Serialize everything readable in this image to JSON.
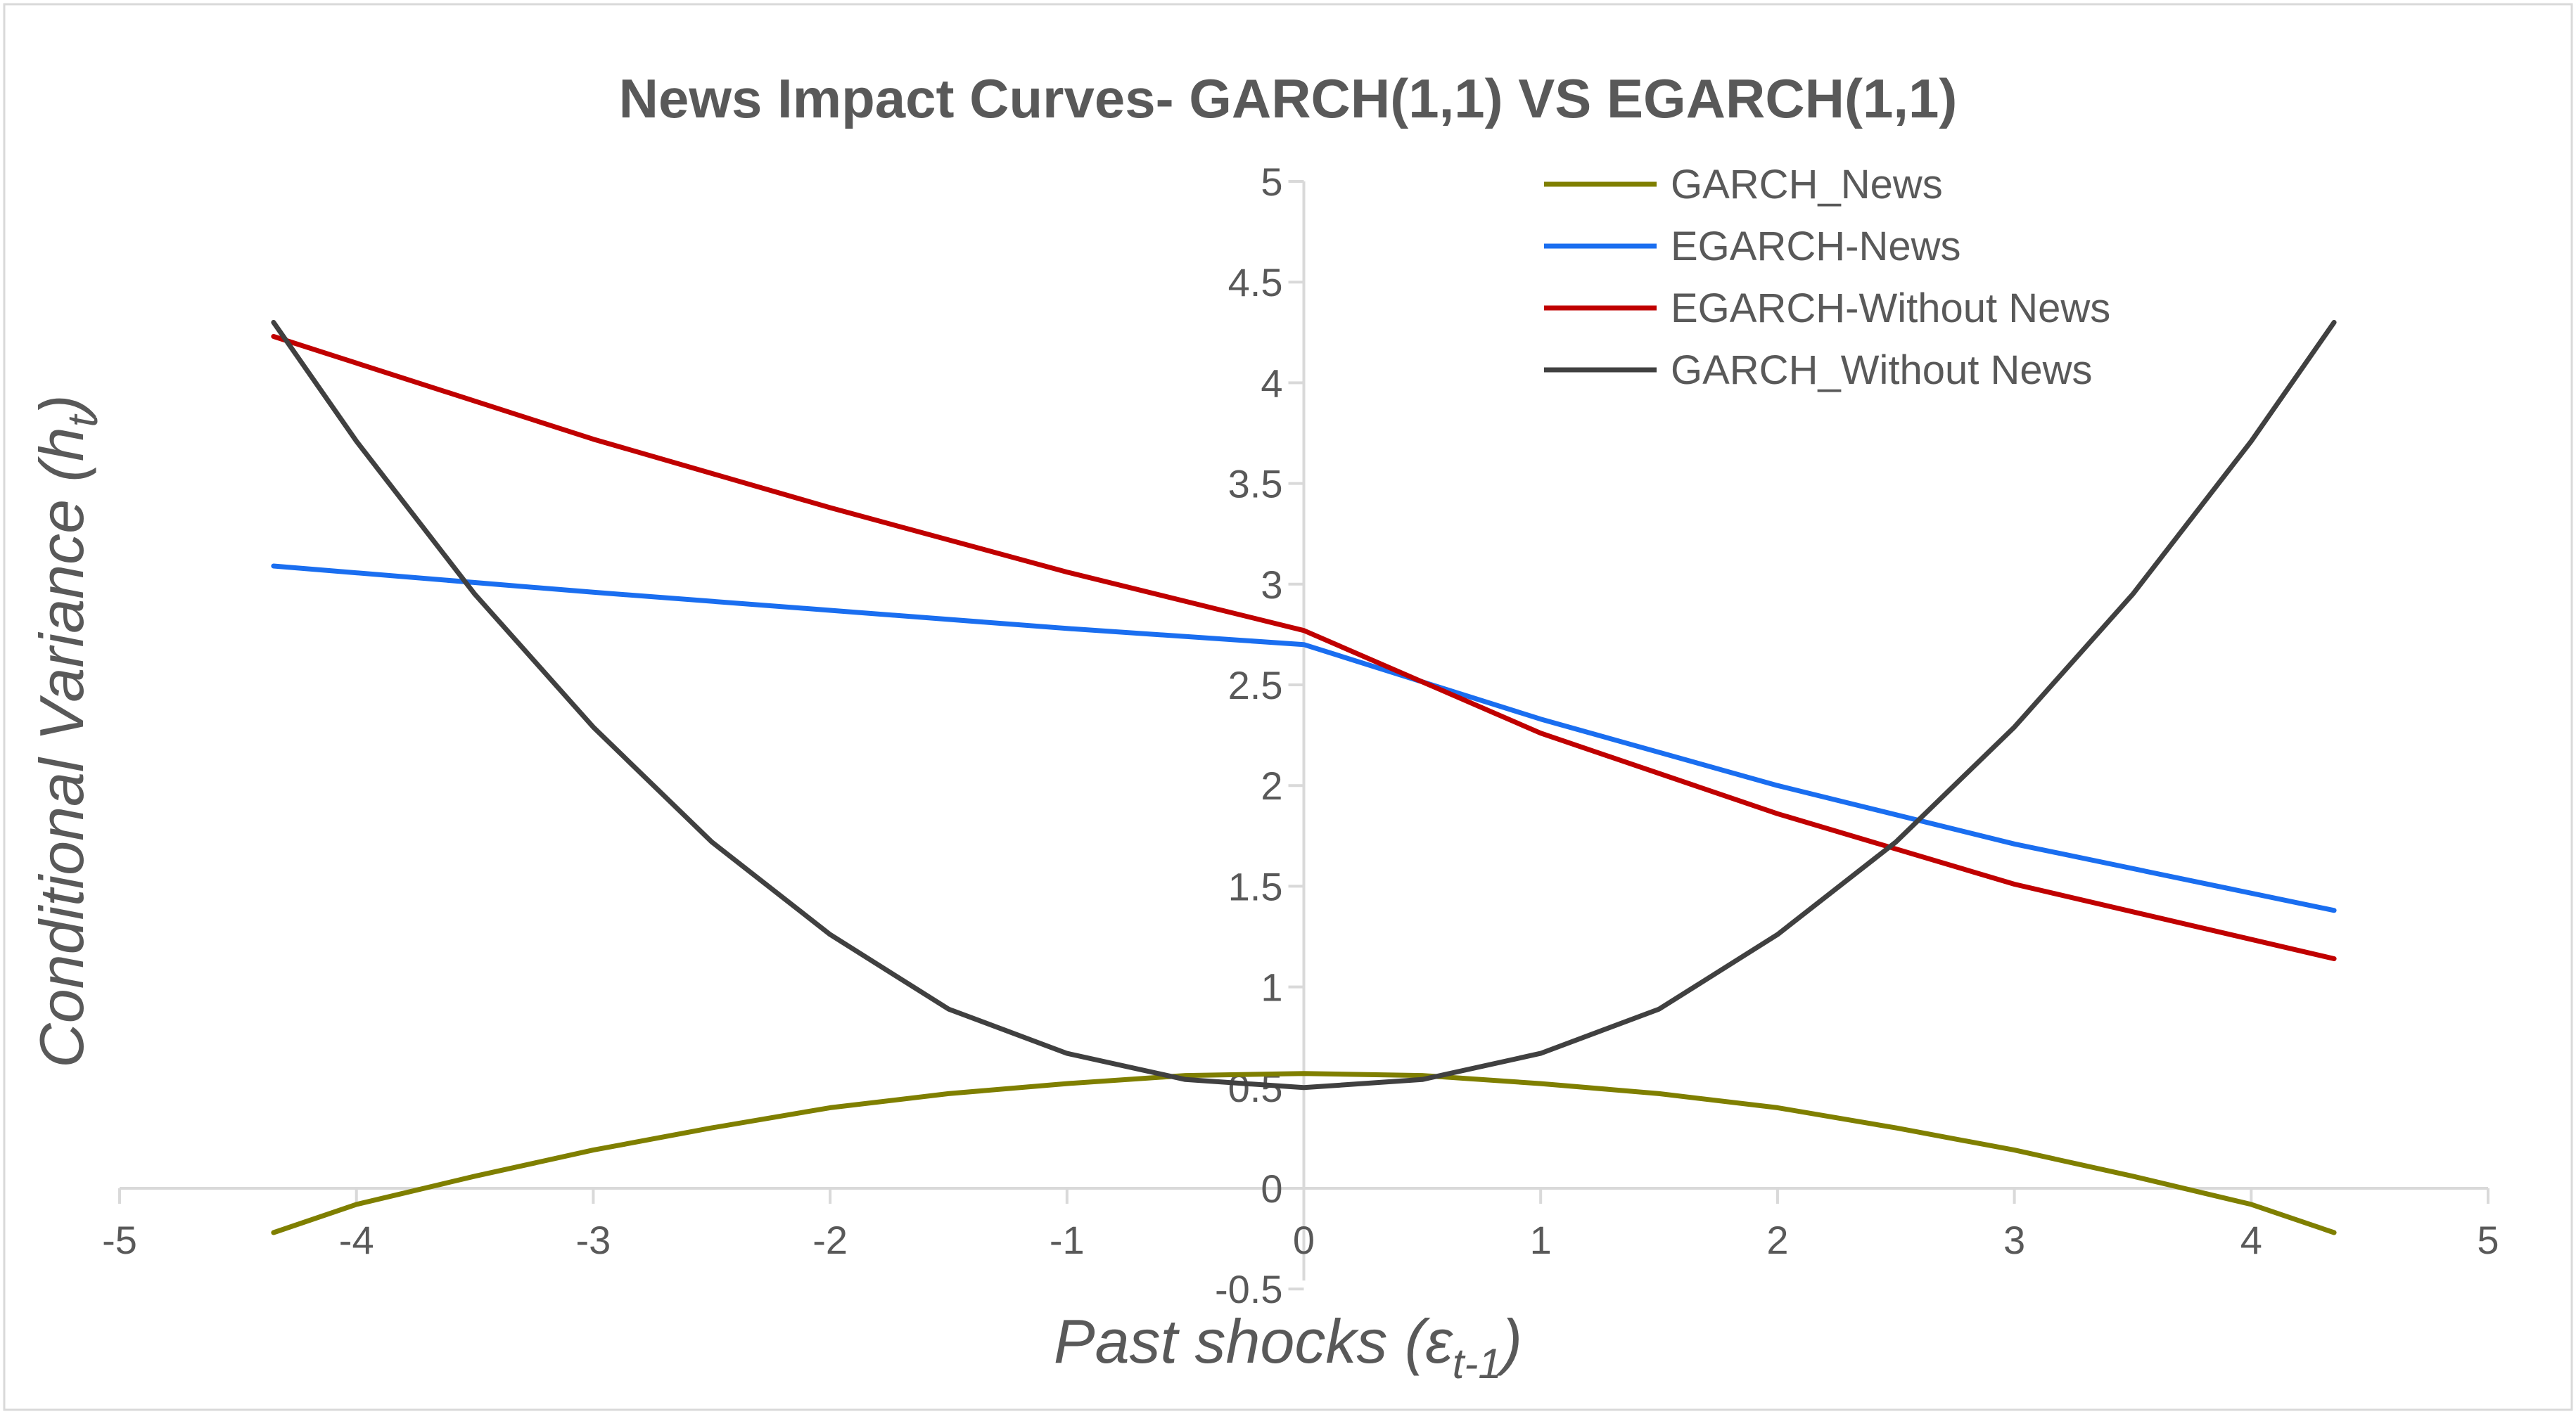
{
  "chart_data": {
    "type": "line",
    "title": "News Impact Curves- GARCH(1,1) VS EGARCH(1,1)",
    "xlabel": "Past shocks (",
    "xlabel_symbol": "ε",
    "xlabel_sub": "t-1",
    "xlabel_close": ")",
    "ylabel": "Conditional Variance (",
    "ylabel_symbol": "h",
    "ylabel_sub": "t",
    "ylabel_close": ")",
    "xlim": [
      -5,
      5
    ],
    "ylim": [
      -0.5,
      5
    ],
    "x_ticks": [
      -5,
      -4,
      -3,
      -2,
      -1,
      0,
      1,
      2,
      3,
      4,
      5
    ],
    "y_ticks": [
      -0.5,
      0,
      0.5,
      1,
      1.5,
      2,
      2.5,
      3,
      3.5,
      4,
      4.5,
      5
    ],
    "legend_position": "top-right",
    "series": [
      {
        "name": "GARCH_News",
        "color": "#7f7f00",
        "x": [
          -4.35,
          -4.0,
          -3.5,
          -3.0,
          -2.5,
          -2.0,
          -1.5,
          -1.0,
          -0.5,
          0.0,
          0.5,
          1.0,
          1.5,
          2.0,
          2.5,
          3.0,
          3.5,
          4.0,
          4.35
        ],
        "y": [
          -0.22,
          -0.08,
          0.06,
          0.19,
          0.3,
          0.4,
          0.47,
          0.52,
          0.56,
          0.57,
          0.56,
          0.52,
          0.47,
          0.4,
          0.3,
          0.19,
          0.06,
          -0.08,
          -0.22
        ]
      },
      {
        "name": "EGARCH-News",
        "color": "#1a6ef0",
        "x": [
          -4.35,
          -3.0,
          -2.0,
          -1.0,
          0.0,
          1.0,
          2.0,
          3.0,
          4.35
        ],
        "y": [
          3.09,
          2.96,
          2.87,
          2.78,
          2.7,
          2.33,
          2.0,
          1.71,
          1.38
        ]
      },
      {
        "name": "EGARCH-Without News",
        "color": "#c00000",
        "x": [
          -4.35,
          -3.0,
          -2.0,
          -1.0,
          0.0,
          1.0,
          2.0,
          3.0,
          4.35
        ],
        "y": [
          4.23,
          3.72,
          3.38,
          3.06,
          2.77,
          2.26,
          1.86,
          1.51,
          1.14
        ]
      },
      {
        "name": "GARCH_Without News",
        "color": "#404040",
        "x": [
          -4.35,
          -4.0,
          -3.5,
          -3.0,
          -2.5,
          -2.0,
          -1.5,
          -1.0,
          -0.5,
          0.0,
          0.5,
          1.0,
          1.5,
          2.0,
          2.5,
          3.0,
          3.5,
          4.0,
          4.35
        ],
        "y": [
          4.3,
          3.71,
          2.95,
          2.29,
          1.72,
          1.26,
          0.89,
          0.67,
          0.54,
          0.5,
          0.54,
          0.67,
          0.89,
          1.26,
          1.72,
          2.29,
          2.95,
          3.71,
          4.3
        ]
      }
    ]
  }
}
